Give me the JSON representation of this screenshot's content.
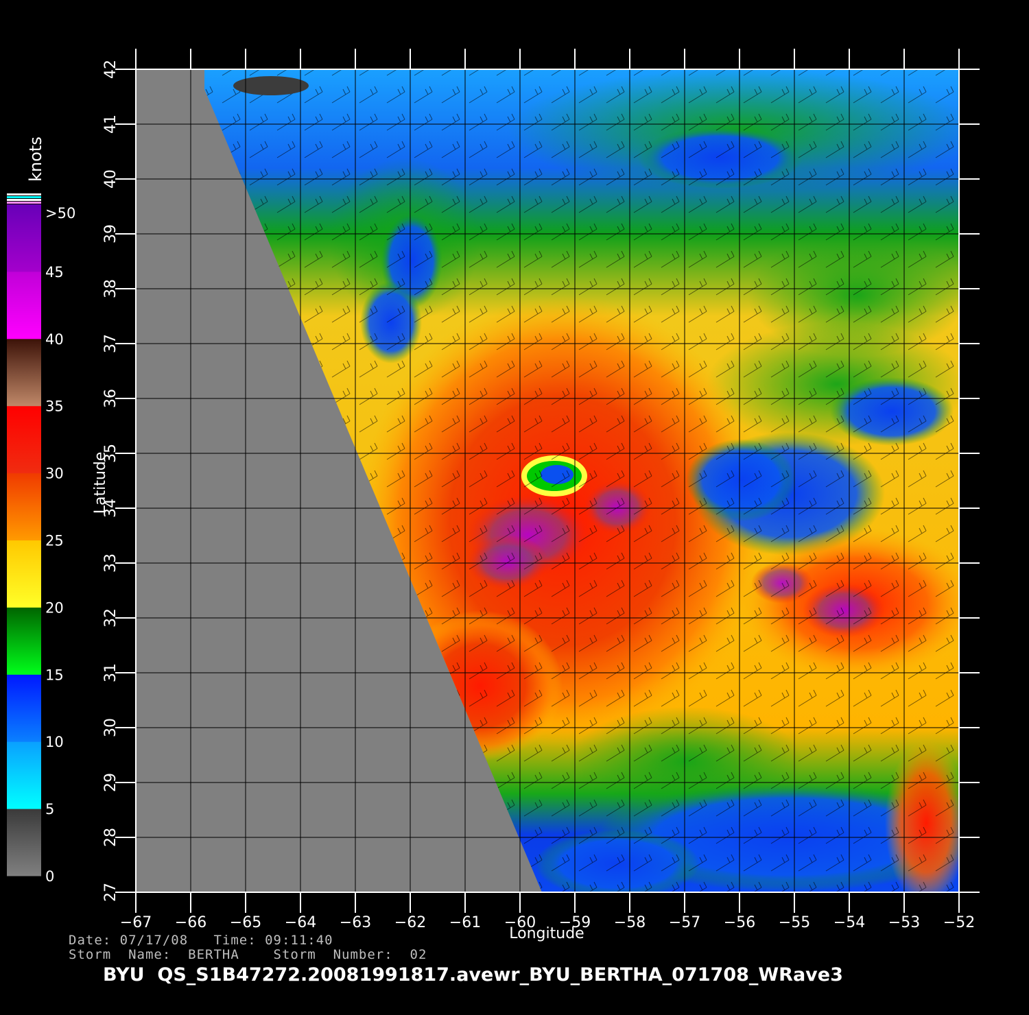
{
  "map": {
    "xlabel": "Longitude",
    "ylabel": "Latitude",
    "lon_ticks": [
      "−67",
      "−66",
      "−65",
      "−64",
      "−63",
      "−62",
      "−61",
      "−60",
      "−59",
      "−58",
      "−57",
      "−56",
      "−55",
      "−54",
      "−53",
      "−52"
    ],
    "lat_ticks": [
      "27",
      "28",
      "29",
      "30",
      "31",
      "32",
      "33",
      "34",
      "35",
      "36",
      "37",
      "38",
      "39",
      "40",
      "41",
      "42"
    ],
    "lon_range": [
      -67,
      -52
    ],
    "lat_range": [
      27,
      42
    ],
    "storm_center": {
      "lon": -59.5,
      "lat": 34.5
    },
    "secondary_max": {
      "lon": -54,
      "lat": 32
    }
  },
  "colorbar": {
    "unit": "knots",
    "labels": [
      ">50",
      "45",
      "40",
      "35",
      "30",
      "25",
      "20",
      "15",
      "10",
      "5",
      "0"
    ],
    "bands": [
      {
        "from": 0,
        "to": 5,
        "top": "#3a3a3a",
        "bottom": "#808080"
      },
      {
        "from": 5,
        "to": 10,
        "top": "#0aa0ff",
        "bottom": "#00ffff"
      },
      {
        "from": 10,
        "to": 15,
        "top": "#0018ff",
        "bottom": "#0a80ff"
      },
      {
        "from": 15,
        "to": 20,
        "top": "#006400",
        "bottom": "#00ff1a"
      },
      {
        "from": 20,
        "to": 25,
        "top": "#ffc800",
        "bottom": "#ffff28"
      },
      {
        "from": 25,
        "to": 30,
        "top": "#f03a00",
        "bottom": "#ff9a00"
      },
      {
        "from": 30,
        "to": 35,
        "top": "#ff0000",
        "bottom": "#f02c10"
      },
      {
        "from": 35,
        "to": 40,
        "top": "#3c1208",
        "bottom": "#c08868"
      },
      {
        "from": 40,
        "to": 45,
        "top": "#c000d8",
        "bottom": "#ff00ff"
      },
      {
        "from": 45,
        "to": 50,
        "top": "#6800b8",
        "bottom": "#a400cc"
      }
    ],
    "top_stripes": [
      "#ffffff",
      "#00ffff",
      "#ffffff",
      "#ff88ff"
    ]
  },
  "colors": {
    "no_data": "#808080",
    "grid": "#000000",
    "background": "#000000"
  },
  "info": {
    "line1": "Date: 07/17/08   Time: 09:11:40",
    "line2": "Storm  Name:  BERTHA    Storm  Number:  02"
  },
  "file_title": "BYU  QS_S1B47272.20081991817.avewr_BYU_BERTHA_071708_WRave3"
}
